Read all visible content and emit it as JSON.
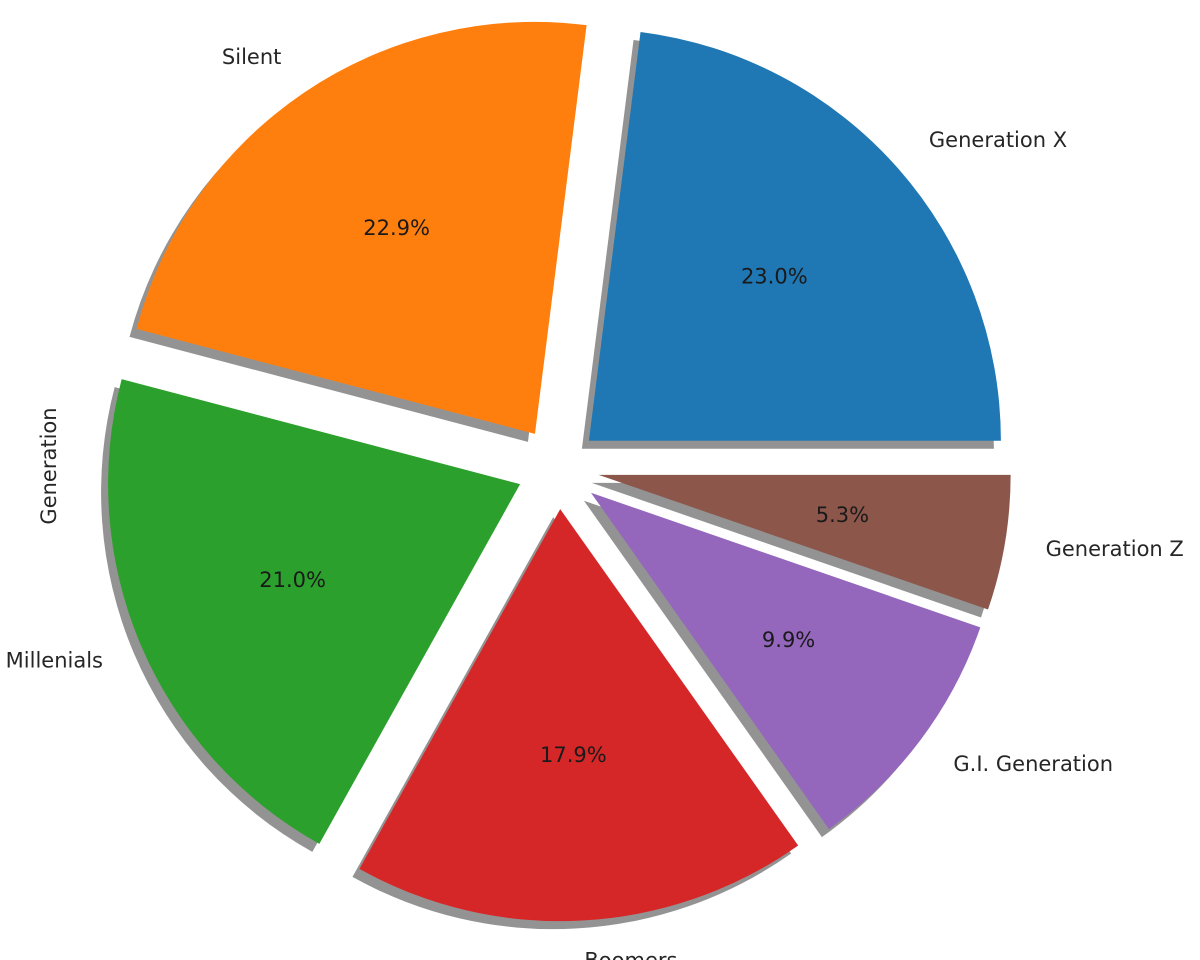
{
  "chart_data": {
    "type": "pie",
    "ylabel": "Generation",
    "start_angle_deg": 0,
    "direction": "counterclockwise",
    "shadow": true,
    "slices": [
      {
        "label": "Generation X",
        "value": 23.0,
        "pct_label": "23.0%",
        "color": "#1f77b4",
        "explode": 0.1
      },
      {
        "label": "Silent",
        "value": 22.9,
        "pct_label": "22.9%",
        "color": "#ff7f0e",
        "explode": 0.1
      },
      {
        "label": "Millenials",
        "value": 21.0,
        "pct_label": "21.0%",
        "color": "#2ca02c",
        "explode": 0.1
      },
      {
        "label": "Boomers",
        "value": 17.9,
        "pct_label": "17.9%",
        "color": "#d62728",
        "explode": 0.1
      },
      {
        "label": "G.I. Generation",
        "value": 9.9,
        "pct_label": "9.9%",
        "color": "#9467bd",
        "explode": 0.1
      },
      {
        "label": "Generation Z",
        "value": 5.3,
        "pct_label": "5.3%",
        "color": "#8c564b",
        "explode": 0.1
      }
    ]
  }
}
